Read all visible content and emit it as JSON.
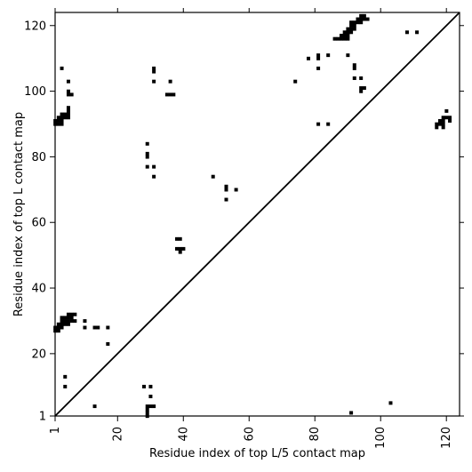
{
  "chart_data": {
    "type": "heatmap",
    "xlabel": "Residue index of top L/5 contact map",
    "ylabel": "Residue index of top L contact map",
    "xlim": [
      1,
      124
    ],
    "ylim": [
      1,
      124
    ],
    "xticks": [
      1,
      20,
      40,
      60,
      80,
      100,
      120
    ],
    "yticks": [
      1,
      20,
      40,
      60,
      80,
      100,
      120
    ],
    "xtick_labels": [
      "1",
      "20",
      "40",
      "60",
      "80",
      "100",
      "120"
    ],
    "ytick_labels": [
      "1",
      "20",
      "40",
      "60",
      "80",
      "100",
      "120"
    ],
    "cell_color": "#000000",
    "background": "#ffffff",
    "diagonal": {
      "from": [
        1,
        1
      ],
      "to": [
        124,
        124
      ]
    },
    "contacts_upper_L": [
      [
        1,
        90
      ],
      [
        1,
        91
      ],
      [
        2,
        90
      ],
      [
        2,
        91
      ],
      [
        2,
        92
      ],
      [
        3,
        90
      ],
      [
        3,
        91
      ],
      [
        3,
        92
      ],
      [
        3,
        93
      ],
      [
        4,
        92
      ],
      [
        4,
        93
      ],
      [
        5,
        92
      ],
      [
        5,
        93
      ],
      [
        5,
        94
      ],
      [
        5,
        95
      ],
      [
        3,
        107
      ],
      [
        5,
        99
      ],
      [
        5,
        100
      ],
      [
        6,
        99
      ],
      [
        5,
        103
      ],
      [
        31,
        106
      ],
      [
        31,
        107
      ],
      [
        31,
        103
      ],
      [
        35,
        99
      ],
      [
        36,
        99
      ],
      [
        37,
        99
      ],
      [
        36,
        103
      ],
      [
        74,
        103
      ],
      [
        78,
        110
      ],
      [
        81,
        110
      ],
      [
        81,
        111
      ],
      [
        84,
        111
      ],
      [
        81,
        107
      ],
      [
        86,
        116
      ],
      [
        87,
        116
      ],
      [
        88,
        116
      ],
      [
        88,
        117
      ],
      [
        89,
        116
      ],
      [
        89,
        117
      ],
      [
        89,
        118
      ],
      [
        90,
        116
      ],
      [
        90,
        117
      ],
      [
        90,
        118
      ],
      [
        90,
        119
      ],
      [
        91,
        118
      ],
      [
        91,
        119
      ],
      [
        91,
        120
      ],
      [
        91,
        121
      ],
      [
        92,
        119
      ],
      [
        92,
        120
      ],
      [
        92,
        121
      ],
      [
        93,
        121
      ],
      [
        93,
        122
      ],
      [
        94,
        121
      ],
      [
        94,
        122
      ],
      [
        94,
        123
      ],
      [
        95,
        122
      ],
      [
        95,
        123
      ],
      [
        96,
        122
      ],
      [
        90,
        111
      ],
      [
        92,
        107
      ],
      [
        92,
        108
      ],
      [
        92,
        104
      ],
      [
        94,
        104
      ],
      [
        94,
        100
      ],
      [
        94,
        101
      ],
      [
        95,
        101
      ],
      [
        108,
        118
      ],
      [
        111,
        118
      ],
      [
        81,
        90
      ],
      [
        84,
        90
      ],
      [
        117,
        89
      ],
      [
        117,
        90
      ],
      [
        118,
        90
      ],
      [
        118,
        91
      ],
      [
        119,
        89
      ],
      [
        119,
        90
      ],
      [
        119,
        91
      ],
      [
        119,
        92
      ],
      [
        120,
        92
      ],
      [
        121,
        91
      ],
      [
        121,
        92
      ],
      [
        120,
        94
      ],
      [
        29,
        84
      ],
      [
        29,
        81
      ],
      [
        29,
        80
      ],
      [
        29,
        77
      ],
      [
        31,
        77
      ],
      [
        31,
        74
      ],
      [
        38,
        55
      ],
      [
        39,
        55
      ],
      [
        38,
        52
      ],
      [
        39,
        52
      ],
      [
        40,
        52
      ],
      [
        39,
        51
      ],
      [
        49,
        74
      ],
      [
        53,
        71
      ],
      [
        53,
        70
      ],
      [
        56,
        70
      ],
      [
        53,
        67
      ]
    ],
    "contacts_lower_L5": [
      [
        1,
        27
      ],
      [
        1,
        28
      ],
      [
        2,
        27
      ],
      [
        2,
        28
      ],
      [
        2,
        29
      ],
      [
        3,
        28
      ],
      [
        3,
        29
      ],
      [
        4,
        29
      ],
      [
        4,
        30
      ],
      [
        4,
        31
      ],
      [
        5,
        29
      ],
      [
        5,
        30
      ],
      [
        5,
        31
      ],
      [
        5,
        32
      ],
      [
        6,
        30
      ],
      [
        6,
        31
      ],
      [
        6,
        32
      ],
      [
        7,
        30
      ],
      [
        7,
        32
      ],
      [
        3,
        30
      ],
      [
        3,
        31
      ],
      [
        10,
        30
      ],
      [
        10,
        28
      ],
      [
        13,
        28
      ],
      [
        14,
        28
      ],
      [
        17,
        28
      ],
      [
        17,
        23
      ],
      [
        4,
        13
      ],
      [
        4,
        10
      ],
      [
        13,
        4
      ],
      [
        28,
        10
      ],
      [
        30,
        10
      ],
      [
        29,
        4
      ],
      [
        30,
        4
      ],
      [
        31,
        4
      ],
      [
        29,
        3
      ],
      [
        29,
        2
      ],
      [
        29,
        1
      ],
      [
        30,
        7
      ],
      [
        91,
        2
      ],
      [
        103,
        5
      ]
    ]
  }
}
